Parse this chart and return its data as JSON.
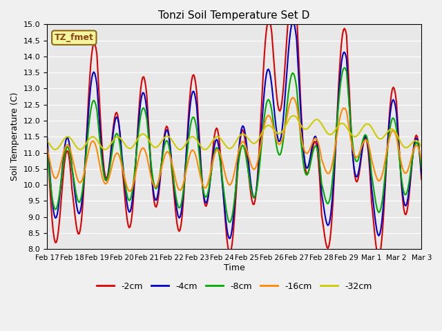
{
  "title": "Tonzi Soil Temperature Set D",
  "xlabel": "Time",
  "ylabel": "Soil Temperature (C)",
  "ylim": [
    8.0,
    15.0
  ],
  "yticks": [
    8.0,
    8.5,
    9.0,
    9.5,
    10.0,
    10.5,
    11.0,
    11.5,
    12.0,
    12.5,
    13.0,
    13.5,
    14.0,
    14.5,
    15.0
  ],
  "xtick_labels": [
    "Feb 17",
    "Feb 18",
    "Feb 19",
    "Feb 20",
    "Feb 21",
    "Feb 22",
    "Feb 23",
    "Feb 24",
    "Feb 25",
    "Feb 26",
    "Feb 27",
    "Feb 28",
    "Feb 29",
    "Mar 1",
    "Mar 2",
    "Mar 3"
  ],
  "annotation_text": "TZ_fmet",
  "series": [
    {
      "label": "-2cm",
      "color": "#dd0000",
      "linewidth": 1.5,
      "y": [
        10.5,
        9.0,
        13.2,
        9.8,
        11.9,
        9.6,
        12.0,
        9.5,
        10.0,
        13.9,
        14.5,
        8.2,
        13.8,
        8.6,
        11.7,
        9.3
      ]
    },
    {
      "label": "-4cm",
      "color": "#0000cc",
      "linewidth": 1.5,
      "y": [
        10.8,
        9.8,
        12.4,
        10.2,
        11.6,
        9.9,
        11.7,
        9.5,
        10.5,
        12.4,
        13.8,
        9.0,
        13.2,
        9.2,
        11.5,
        9.6
      ]
    },
    {
      "label": "-8cm",
      "color": "#00aa00",
      "linewidth": 1.5,
      "y": [
        10.5,
        10.0,
        11.8,
        10.2,
        11.5,
        10.0,
        11.2,
        9.8,
        10.2,
        11.8,
        12.5,
        9.5,
        13.0,
        9.8,
        11.2,
        10.0
      ]
    },
    {
      "label": "-16cm",
      "color": "#ff8800",
      "linewidth": 1.5,
      "y": [
        10.9,
        10.6,
        10.8,
        10.3,
        10.6,
        10.4,
        10.5,
        10.5,
        10.8,
        11.7,
        12.2,
        10.5,
        12.0,
        10.5,
        11.2,
        10.5
      ]
    },
    {
      "label": "-32cm",
      "color": "#cccc00",
      "linewidth": 1.5,
      "y": [
        11.3,
        11.3,
        11.3,
        11.3,
        11.4,
        11.3,
        11.3,
        11.3,
        11.4,
        11.7,
        12.0,
        11.8,
        11.7,
        11.7,
        11.5,
        11.1
      ]
    }
  ]
}
